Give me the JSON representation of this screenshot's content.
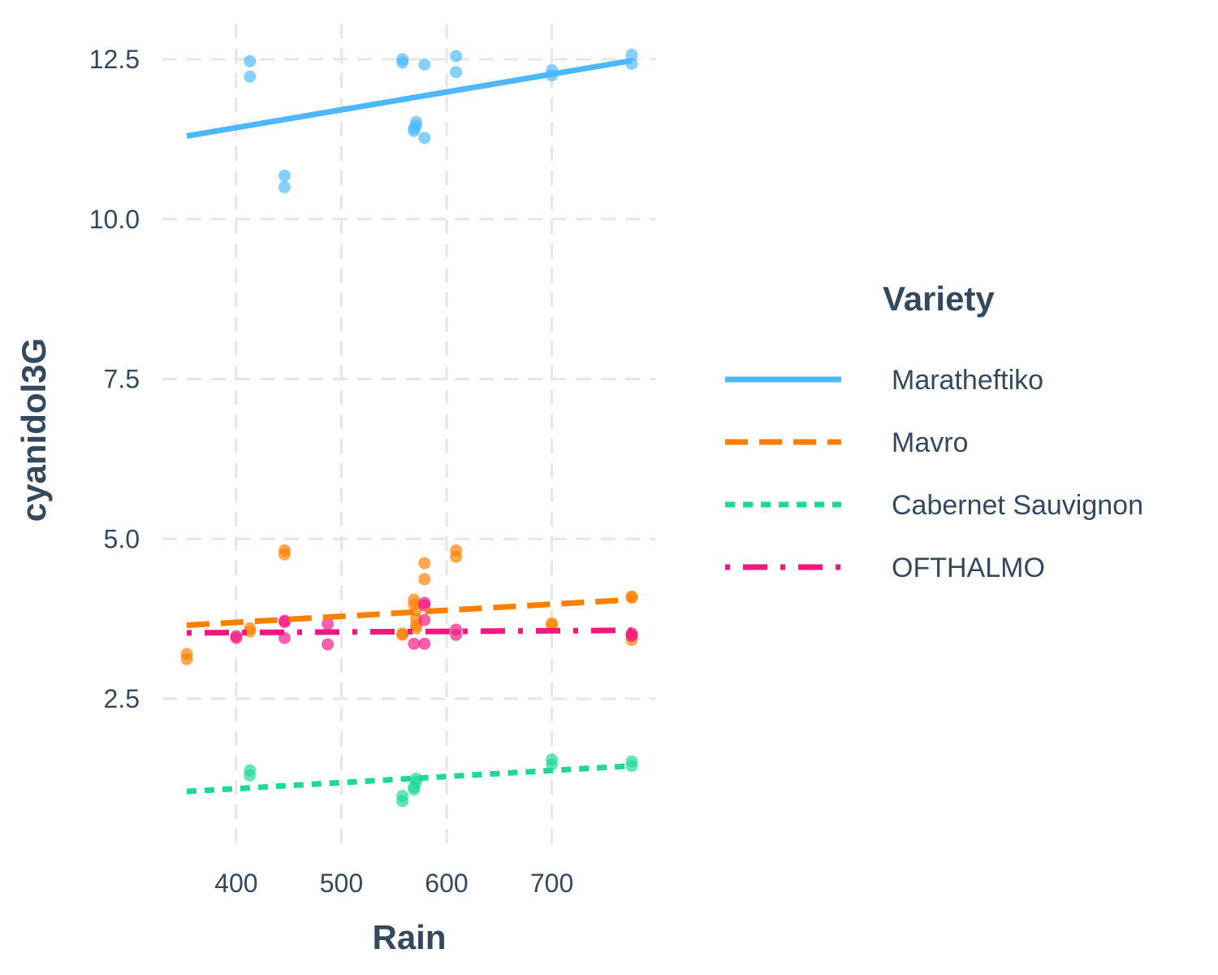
{
  "chart_data": {
    "type": "scatter",
    "title": "",
    "xlabel": "Rain",
    "ylabel": "cyanidol3G",
    "xlim": [
      340,
      790
    ],
    "ylim": [
      0.45,
      12.9
    ],
    "x_ticks": [
      400,
      500,
      600,
      700
    ],
    "x_tick_labels": [
      "400",
      "500",
      "600",
      "700"
    ],
    "y_ticks": [
      2.5,
      5.0,
      7.5,
      10.0,
      12.5
    ],
    "y_tick_labels": [
      "2.5",
      "5.0",
      "7.5",
      "10.0",
      "12.5"
    ],
    "grid": true,
    "legend": {
      "title": "Variety",
      "position": "right"
    },
    "series": [
      {
        "name": "Maratheftiko",
        "color": "#4db8ff",
        "line_style": "solid",
        "trend": {
          "x": [
            353,
            776
          ],
          "y": [
            11.3,
            12.48
          ]
        },
        "points": [
          [
            413,
            12.47
          ],
          [
            413,
            12.23
          ],
          [
            446,
            10.68
          ],
          [
            446,
            10.5
          ],
          [
            558,
            12.5
          ],
          [
            558,
            12.45
          ],
          [
            569,
            11.42
          ],
          [
            569,
            11.38
          ],
          [
            571,
            11.52
          ],
          [
            571,
            11.46
          ],
          [
            579,
            12.42
          ],
          [
            579,
            11.27
          ],
          [
            609,
            12.55
          ],
          [
            609,
            12.3
          ],
          [
            700,
            12.33
          ],
          [
            700,
            12.25
          ],
          [
            776,
            12.57
          ],
          [
            776,
            12.43
          ]
        ]
      },
      {
        "name": "Mavro",
        "color": "#ff7f00",
        "line_style": "dashed",
        "trend": {
          "x": [
            353,
            776
          ],
          "y": [
            3.65,
            4.05
          ]
        },
        "points": [
          [
            353,
            3.2
          ],
          [
            353,
            3.12
          ],
          [
            413,
            3.6
          ],
          [
            413,
            3.55
          ],
          [
            446,
            4.82
          ],
          [
            446,
            4.76
          ],
          [
            558,
            3.52
          ],
          [
            558,
            3.5
          ],
          [
            569,
            4.05
          ],
          [
            569,
            3.97
          ],
          [
            571,
            3.88
          ],
          [
            571,
            3.75
          ],
          [
            571,
            3.65
          ],
          [
            571,
            3.6
          ],
          [
            579,
            4.62
          ],
          [
            579,
            4.37
          ],
          [
            609,
            4.82
          ],
          [
            609,
            4.72
          ],
          [
            700,
            3.68
          ],
          [
            700,
            3.65
          ],
          [
            776,
            4.1
          ],
          [
            776,
            4.08
          ],
          [
            776,
            3.5
          ],
          [
            776,
            3.42
          ]
        ]
      },
      {
        "name": "Cabernet Sauvignon",
        "color": "#1ed89a",
        "line_style": "dotted",
        "trend": {
          "x": [
            353,
            776
          ],
          "y": [
            1.05,
            1.45
          ]
        },
        "points": [
          [
            413,
            1.38
          ],
          [
            413,
            1.3
          ],
          [
            558,
            0.98
          ],
          [
            558,
            0.9
          ],
          [
            569,
            1.12
          ],
          [
            569,
            1.08
          ],
          [
            571,
            1.25
          ],
          [
            571,
            1.2
          ],
          [
            700,
            1.55
          ],
          [
            700,
            1.47
          ],
          [
            776,
            1.52
          ],
          [
            776,
            1.45
          ]
        ]
      },
      {
        "name": "OFTHALMO",
        "color": "#f01780",
        "line_style": "dotdash",
        "trend": {
          "x": [
            353,
            776
          ],
          "y": [
            3.53,
            3.57
          ]
        },
        "points": [
          [
            400,
            3.48
          ],
          [
            400,
            3.45
          ],
          [
            446,
            3.72
          ],
          [
            446,
            3.7
          ],
          [
            446,
            3.45
          ],
          [
            487,
            3.67
          ],
          [
            487,
            3.35
          ],
          [
            569,
            3.36
          ],
          [
            579,
            4.0
          ],
          [
            579,
            3.96
          ],
          [
            579,
            3.73
          ],
          [
            579,
            3.36
          ],
          [
            609,
            3.58
          ],
          [
            609,
            3.5
          ],
          [
            776,
            3.52
          ],
          [
            776,
            3.48
          ]
        ]
      }
    ]
  }
}
